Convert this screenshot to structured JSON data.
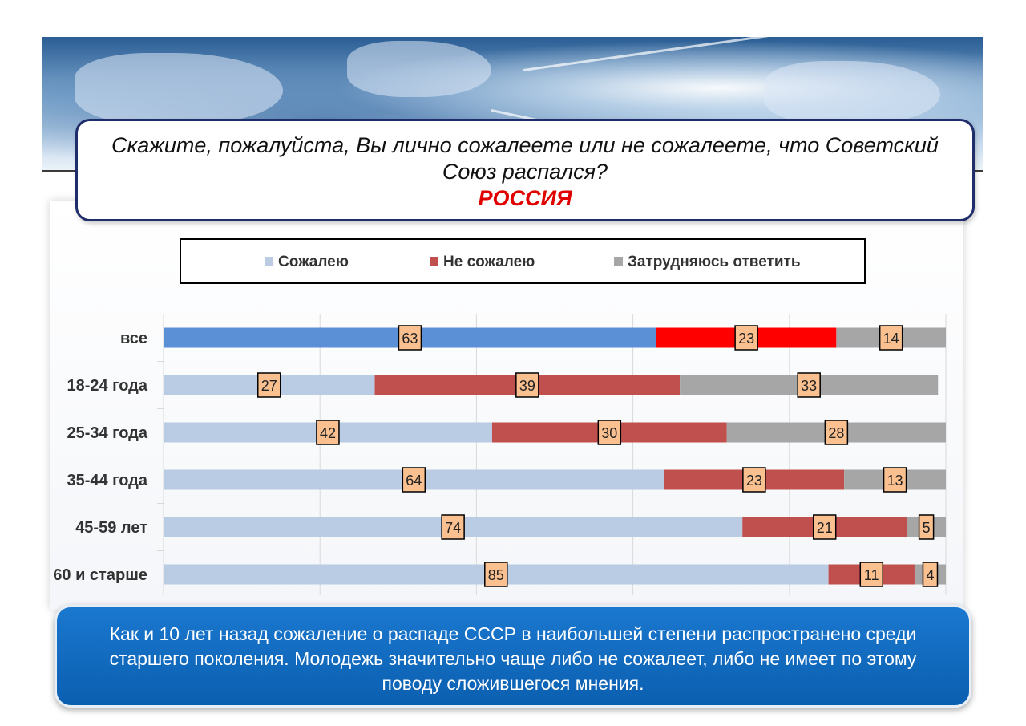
{
  "question": {
    "text": "Скажите, пожалуйста, Вы лично сожалеете или не сожалеете, что Советский Союз распался?",
    "country": "РОССИЯ"
  },
  "colors": {
    "regret": "#b9cce4",
    "regret_highlight": "#5b8fd6",
    "no_regret": "#c0504d",
    "no_regret_highlight": "#ff0000",
    "hard": "#a6a6a6",
    "label_box": "#fac090"
  },
  "chart_data": {
    "type": "bar",
    "orientation": "horizontal",
    "stacked": true,
    "categories": [
      "все",
      "18-24 года",
      "25-34 года",
      "35-44 года",
      "45-59 лет",
      "60 и старше"
    ],
    "series": [
      {
        "name": "Сожалею",
        "values": [
          63,
          27,
          42,
          64,
          74,
          85
        ]
      },
      {
        "name": "Не сожалею",
        "values": [
          23,
          39,
          30,
          23,
          21,
          11
        ]
      },
      {
        "name": "Затрудняюсь ответить",
        "values": [
          14,
          33,
          28,
          13,
          5,
          4
        ]
      }
    ],
    "xlim": [
      0,
      100
    ],
    "grid": true,
    "legend": "top"
  },
  "footer": {
    "text": "Как и 10 лет назад сожаление о распаде СССР в наибольшей степени распространено среди старшего поколения. Молодежь значительно чаще либо не сожалеет, либо не имеет по этому поводу сложившегося мнения."
  }
}
